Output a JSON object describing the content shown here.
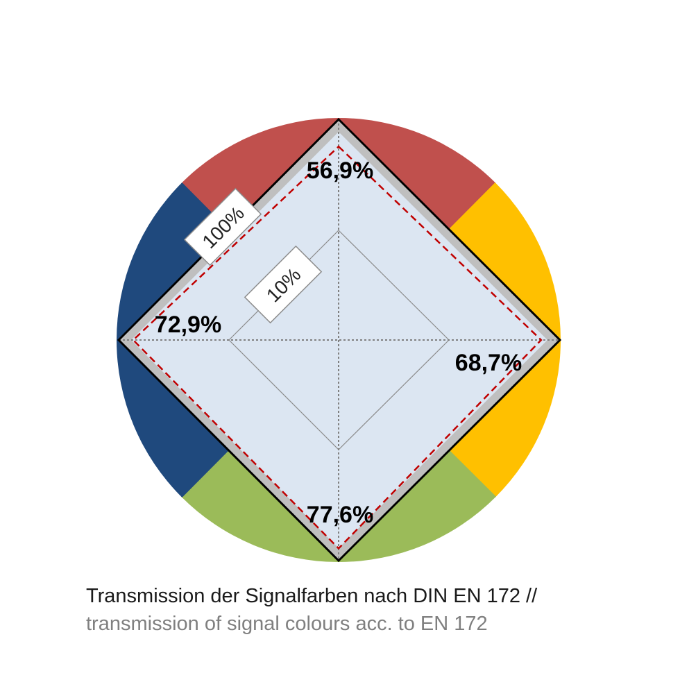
{
  "chart_data": {
    "type": "radar",
    "axes": [
      {
        "color": "red",
        "hex": "#C0504D",
        "value": 56.9,
        "label": "56,9%"
      },
      {
        "color": "yellow",
        "hex": "#FFC000",
        "value": 68.7,
        "label": "68,7%"
      },
      {
        "color": "green",
        "hex": "#9BBB59",
        "value": 77.6,
        "label": "77,6%"
      },
      {
        "color": "blue",
        "hex": "#1F497D",
        "value": 72.9,
        "label": "72,9%"
      }
    ],
    "scale_labels": [
      "100%",
      "10%"
    ],
    "grid": true
  },
  "caption": {
    "de": "Transmission der Signalfarben nach DIN EN 172 //",
    "en": "transmission of signal colours acc. to EN 172"
  }
}
